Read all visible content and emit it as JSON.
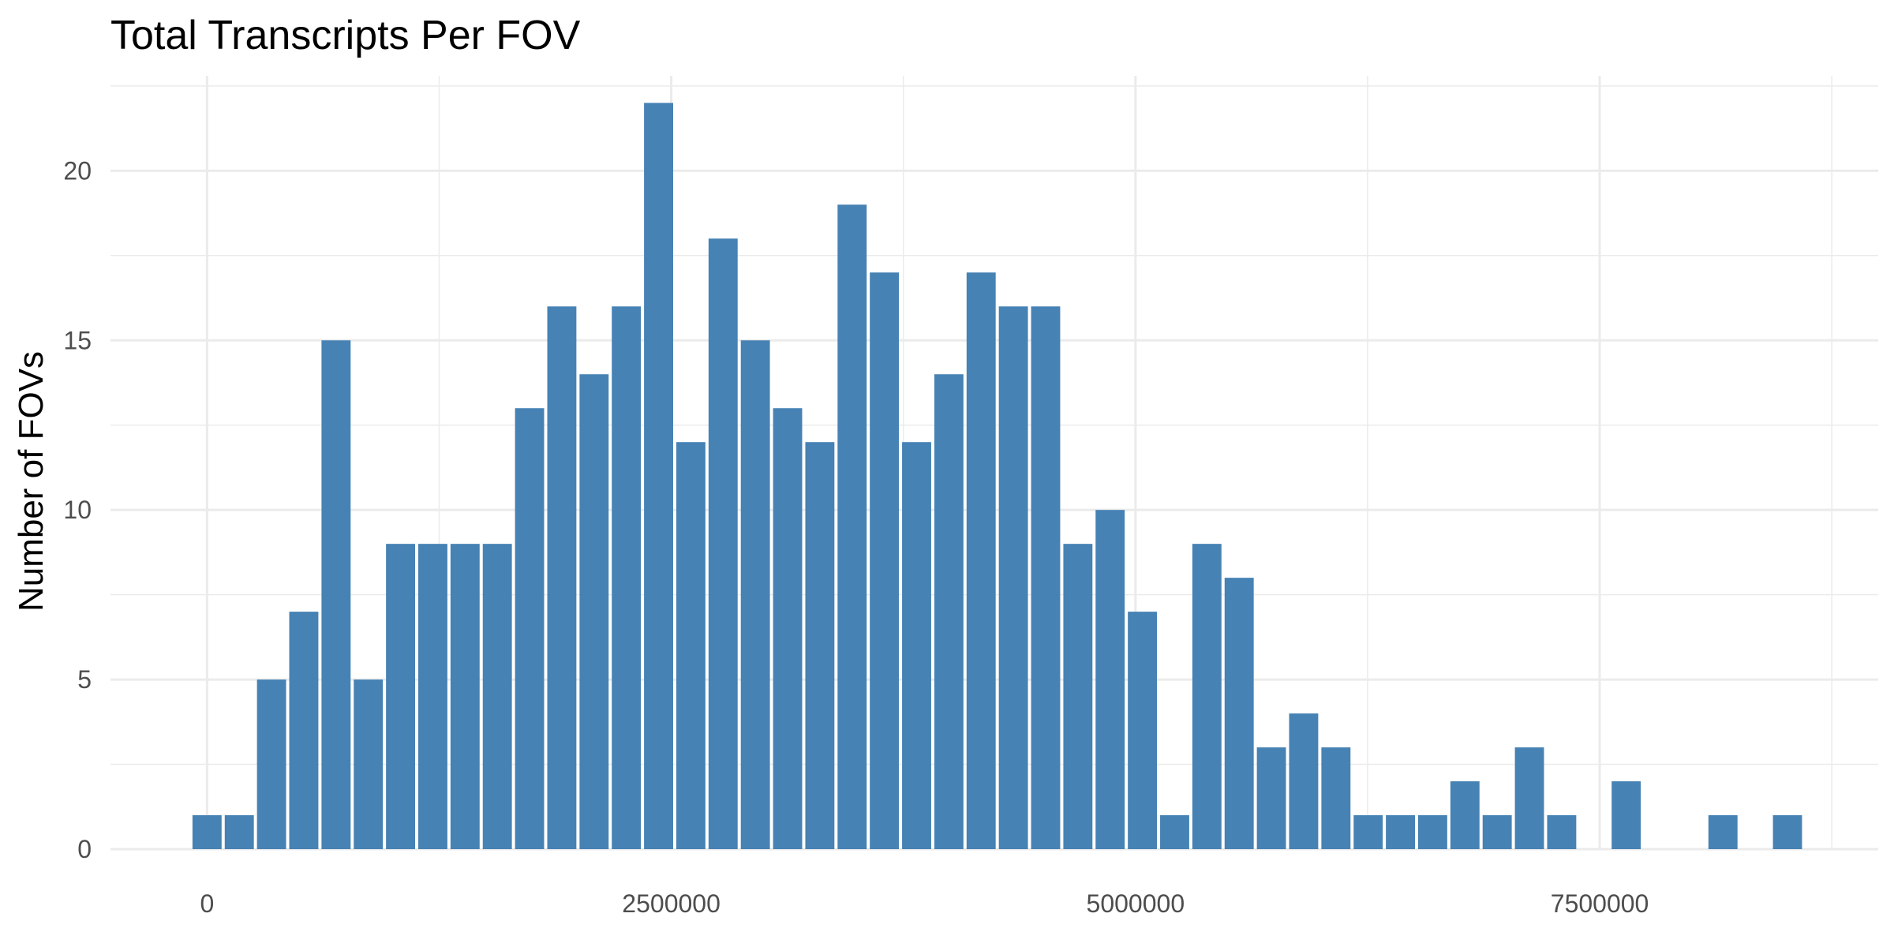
{
  "chart_data": {
    "type": "bar",
    "title": "Total Transcripts Per FOV",
    "xlabel": "",
    "ylabel": "Number of FOVs",
    "xlim": [
      -520000,
      9000000
    ],
    "ylim": [
      0,
      22.8
    ],
    "x_ticks": [
      0,
      2500000,
      5000000,
      7500000
    ],
    "y_ticks": [
      0,
      5,
      10,
      15,
      20
    ],
    "grid": true,
    "bar_color": "#4682B4",
    "bin_width": 173700,
    "series": [
      {
        "x": [
          0,
          173700,
          347400,
          521100,
          694800,
          868500,
          1042200,
          1215900,
          1389600,
          1563300,
          1737000,
          1910700,
          2084400,
          2258100,
          2431800,
          2605500,
          2779200,
          2952900,
          3126600,
          3300300,
          3474000,
          3647700,
          3821400,
          3995100,
          4168800,
          4342500,
          4516200,
          4689900,
          4863600,
          5037300,
          5211000,
          5384700,
          5558400,
          5732100,
          5905800,
          6079500,
          6253200,
          6426900,
          6600600,
          6774300,
          6948000,
          7121700,
          7295400,
          7469100,
          7642800,
          7816500,
          7990200,
          8163900,
          8337600,
          8511300
        ],
        "values": [
          1,
          1,
          5,
          7,
          15,
          5,
          9,
          9,
          9,
          9,
          13,
          16,
          14,
          16,
          22,
          12,
          18,
          15,
          13,
          12,
          19,
          17,
          12,
          14,
          17,
          16,
          16,
          9,
          10,
          7,
          1,
          9,
          8,
          3,
          4,
          3,
          1,
          1,
          1,
          2,
          1,
          3,
          1,
          0,
          2,
          0,
          0,
          1,
          0,
          1
        ]
      }
    ]
  }
}
